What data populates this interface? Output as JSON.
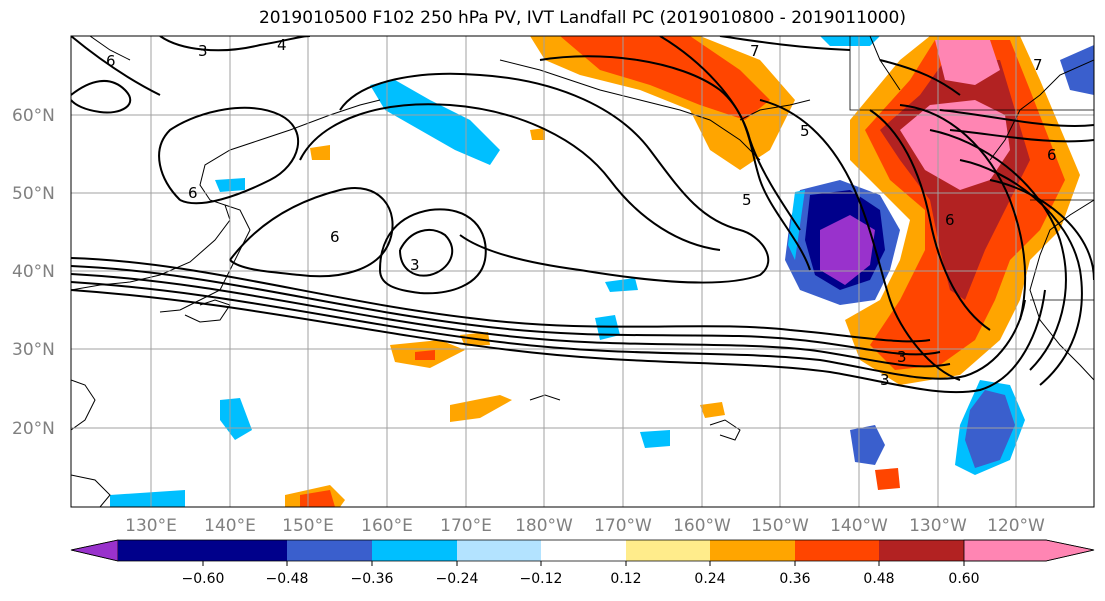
{
  "title": "2019010500 F102 250 hPa PV, IVT Landfall PC (2019010800 - 2019011000)",
  "lat_labels": [
    "60°N",
    "50°N",
    "40°N",
    "30°N",
    "20°N"
  ],
  "lon_labels": [
    "130°E",
    "140°E",
    "150°E",
    "160°E",
    "170°E",
    "180°W",
    "170°W",
    "160°W",
    "150°W",
    "140°W",
    "130°W",
    "120°W"
  ],
  "contour_labels": [
    "6",
    "3",
    "4",
    "6",
    "7",
    "5",
    "5",
    "6",
    "3",
    "6",
    "3",
    "6",
    "3",
    "7"
  ],
  "colorbar": {
    "ticks": [
      "−0.60",
      "−0.48",
      "−0.36",
      "−0.24",
      "−0.12",
      "0.12",
      "0.24",
      "0.36",
      "0.48",
      "0.60"
    ],
    "colors": [
      "#9932cc",
      "#00008b",
      "#3a5fcd",
      "#00bfff",
      "#b3e3ff",
      "#ffffff",
      "#ffec8b",
      "#ffa500",
      "#ff4500",
      "#b22222",
      "#ff85b3"
    ]
  }
}
